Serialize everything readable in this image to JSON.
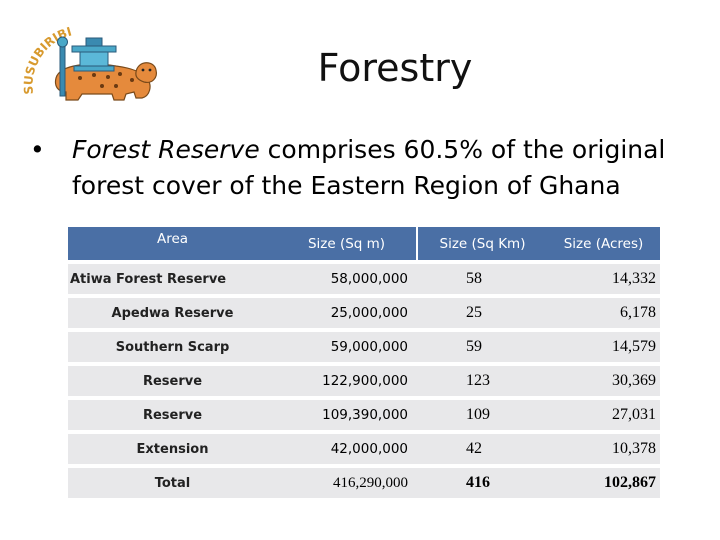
{
  "logo": {
    "text": "SUSUBIRIBI",
    "icon": "leopard-with-stool-emblem"
  },
  "title": "Forestry",
  "bullet": {
    "emphasis": "Forest Reserve",
    "rest": " comprises 60.5% of the original forest cover of the Eastern Region of Ghana"
  },
  "table": {
    "headers": {
      "area": "Area",
      "sqm": "Size (Sq m)",
      "sqkm": "Size (Sq Km)",
      "acres": "Size (Acres)"
    },
    "rows": [
      {
        "area": "Atiwa Forest Reserve",
        "sqm": "58,000,000",
        "sqkm": "58",
        "acres": "14,332"
      },
      {
        "area": "Apedwa Reserve",
        "sqm": "25,000,000",
        "sqkm": "25",
        "acres": "6,178"
      },
      {
        "area": "Southern Scarp",
        "sqm": "59,000,000",
        "sqkm": "59",
        "acres": "14,579"
      },
      {
        "area": "Reserve",
        "sqm": "122,900,000",
        "sqkm": "123",
        "acres": "30,369"
      },
      {
        "area": "Reserve",
        "sqm": "109,390,000",
        "sqkm": "109",
        "acres": "27,031"
      },
      {
        "area": "Extension",
        "sqm": "42,000,000",
        "sqkm": "42",
        "acres": "10,378"
      },
      {
        "area": "Total",
        "sqm": "416,290,000",
        "sqkm": "416",
        "acres": "102,867"
      }
    ]
  }
}
